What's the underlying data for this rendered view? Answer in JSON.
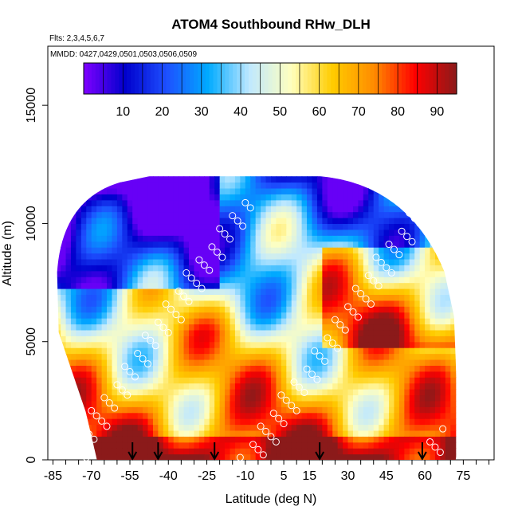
{
  "chart_data": {
    "type": "heatmap",
    "title": "ATOM4 Southbound RHw_DLH",
    "flights_label": "Flts: 2,3,4,5,6,7",
    "dates_label": "MMDD: 0427,0429,0501,0503,0506,0509",
    "xlabel": "Latitude (deg N)",
    "ylabel": "Altitude (m)",
    "xlim": [
      -87,
      87
    ],
    "ylim": [
      0,
      17500
    ],
    "x_ticks": [
      -85,
      -70,
      -55,
      -40,
      -25,
      -10,
      5,
      15,
      30,
      45,
      60,
      75
    ],
    "x_tick_labels": [
      "-85",
      "-70",
      "-55",
      "-40",
      "-25",
      "-10",
      "5",
      "15",
      "30",
      "45",
      "60",
      "75"
    ],
    "y_ticks": [
      0,
      5000,
      10000,
      15000
    ],
    "y_tick_labels": [
      "0",
      "5000",
      "10000",
      "15000"
    ],
    "colorbar": {
      "range": [
        0,
        95
      ],
      "ticks": [
        10,
        20,
        30,
        40,
        50,
        60,
        70,
        80,
        90
      ],
      "tick_labels": [
        "10",
        "20",
        "30",
        "40",
        "50",
        "60",
        "70",
        "80",
        "90"
      ],
      "colors": [
        "#7f00ff",
        "#0000cd",
        "#1e50ff",
        "#00aaff",
        "#bfe8ff",
        "#ffffbf",
        "#ffcc00",
        "#ff8c00",
        "#ff0000",
        "#8b1a1a"
      ]
    },
    "arrow_latitudes": [
      -54,
      -44,
      -22,
      19,
      59
    ],
    "data_extent": {
      "lat_min": -84,
      "lat_max": 72,
      "alt_max": 12000,
      "bottom_alt": 0
    },
    "grid": false,
    "legend": "colorbar top"
  }
}
